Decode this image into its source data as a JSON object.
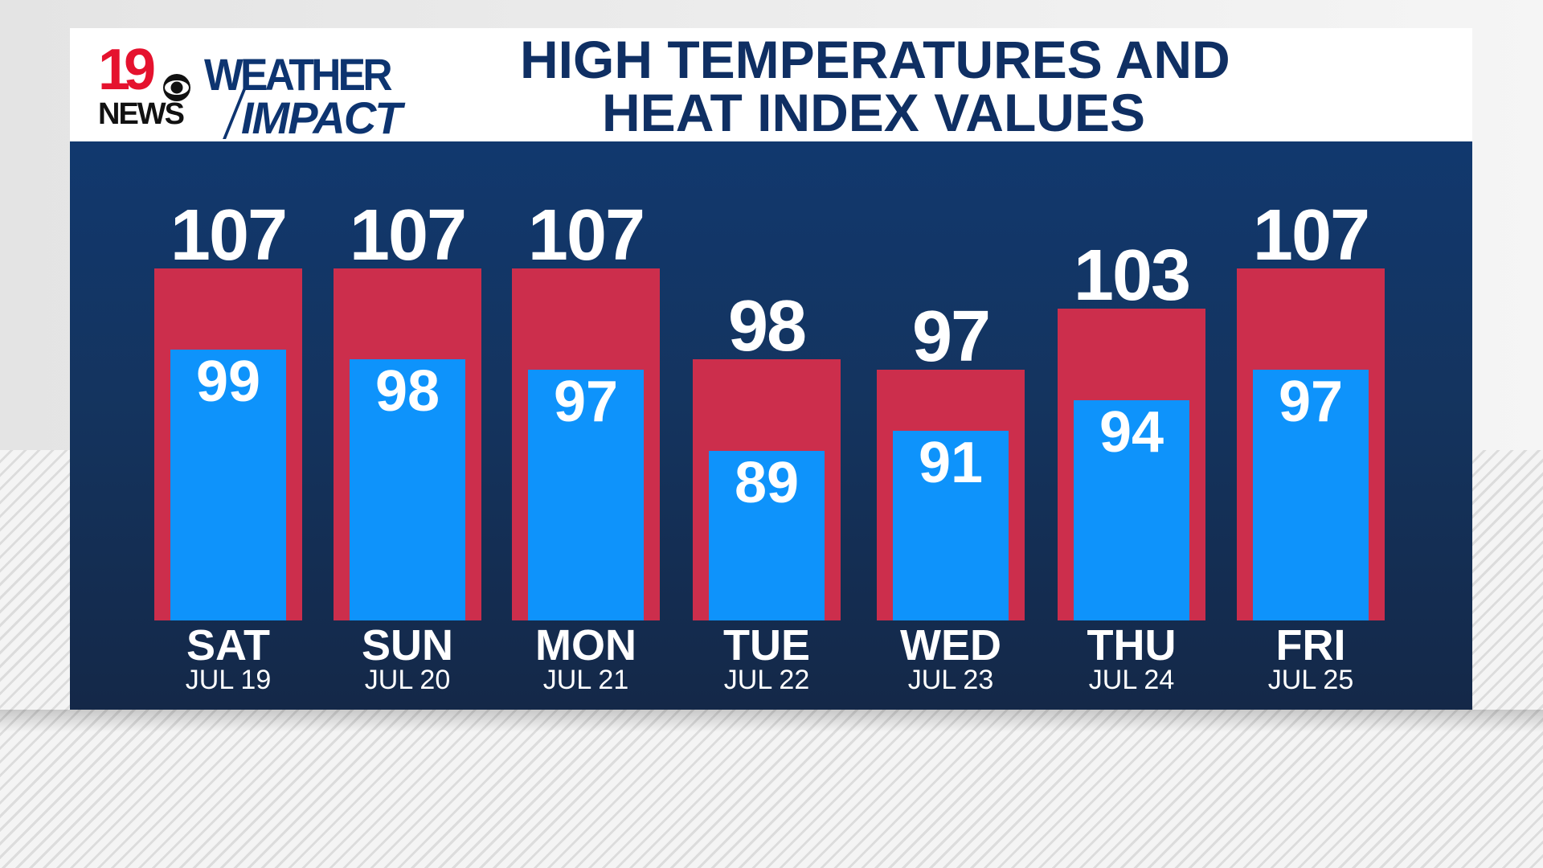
{
  "header": {
    "logo": {
      "station_number": "19",
      "station_word": "NEWS",
      "network_icon": "cbs-eye-icon",
      "brand_line1": "WEATHER",
      "brand_line2": "IMPACT"
    },
    "title_line1": "HIGH TEMPERATURES AND",
    "title_line2": "HEAT INDEX VALUES"
  },
  "colors": {
    "heat_index_bar": "#cc2e4c",
    "high_temp_bar": "#0e93fb",
    "background": "#13345f",
    "title": "#0f2f63",
    "station_red": "#e5122e"
  },
  "days": [
    {
      "day": "SAT",
      "date": "JUL 19",
      "heat_index": "107",
      "high": "99"
    },
    {
      "day": "SUN",
      "date": "JUL 20",
      "heat_index": "107",
      "high": "98"
    },
    {
      "day": "MON",
      "date": "JUL 21",
      "heat_index": "107",
      "high": "97"
    },
    {
      "day": "TUE",
      "date": "JUL 22",
      "heat_index": "98",
      "high": "89"
    },
    {
      "day": "WED",
      "date": "JUL 23",
      "heat_index": "97",
      "high": "91"
    },
    {
      "day": "THU",
      "date": "JUL 24",
      "heat_index": "103",
      "high": "94"
    },
    {
      "day": "FRI",
      "date": "JUL 25",
      "heat_index": "107",
      "high": "97"
    }
  ],
  "chart_data": {
    "type": "bar",
    "title": "HIGH TEMPERATURES AND HEAT INDEX VALUES",
    "categories": [
      "SAT JUL 19",
      "SUN JUL 20",
      "MON JUL 21",
      "TUE JUL 22",
      "WED JUL 23",
      "THU JUL 24",
      "FRI JUL 25"
    ],
    "series": [
      {
        "name": "Heat Index",
        "color": "#cc2e4c",
        "values": [
          107,
          107,
          107,
          98,
          97,
          103,
          107
        ]
      },
      {
        "name": "High Temperature",
        "color": "#0e93fb",
        "values": [
          99,
          98,
          97,
          89,
          91,
          94,
          97
        ]
      }
    ],
    "xlabel": "",
    "ylabel": "",
    "units": "°F",
    "grid": false,
    "legend": "none",
    "layout": "overlapping bars; high temperature bar drawn inside heat index bar; values labeled on bars"
  }
}
